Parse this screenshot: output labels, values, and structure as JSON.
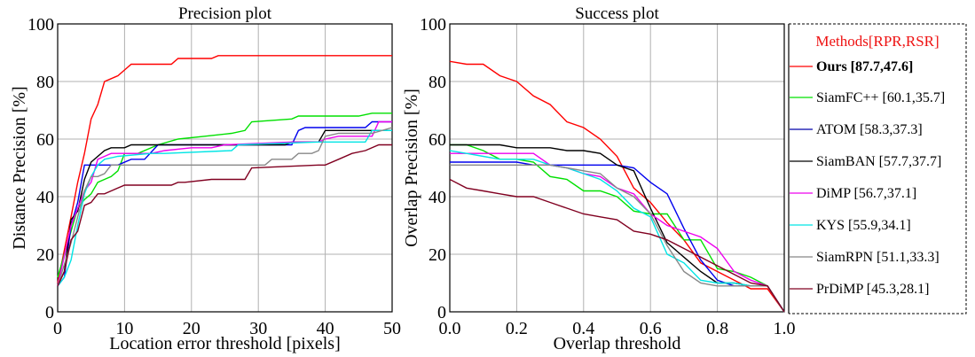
{
  "chart_data": [
    {
      "type": "line",
      "title": "Precision plot",
      "xlabel": "Location error threshold [pixels]",
      "ylabel": "Distance Precision [%]",
      "xlim": [
        0,
        50
      ],
      "ylim": [
        0,
        100
      ],
      "xticks": [
        "0",
        "10",
        "20",
        "30",
        "40",
        "50"
      ],
      "yticks": [
        "0",
        "20",
        "40",
        "60",
        "80",
        "100"
      ],
      "grid": true,
      "series": [
        {
          "name": "Ours",
          "color": "#ff0000",
          "points": [
            [
              0,
              10
            ],
            [
              2,
              33
            ],
            [
              3,
              45
            ],
            [
              4,
              55
            ],
            [
              5,
              67
            ],
            [
              6,
              72
            ],
            [
              7,
              80
            ],
            [
              8,
              81
            ],
            [
              9,
              82
            ],
            [
              10,
              84
            ],
            [
              11,
              86
            ],
            [
              17,
              86
            ],
            [
              18,
              88
            ],
            [
              23,
              88
            ],
            [
              24,
              89
            ],
            [
              50,
              89
            ]
          ]
        },
        {
          "name": "SiamFC++",
          "color": "#00e000",
          "points": [
            [
              0,
              12
            ],
            [
              2,
              28
            ],
            [
              3,
              36
            ],
            [
              4,
              39
            ],
            [
              5,
              41
            ],
            [
              6,
              45
            ],
            [
              7,
              46
            ],
            [
              8,
              47
            ],
            [
              9,
              49
            ],
            [
              10,
              55
            ],
            [
              12,
              55
            ],
            [
              15,
              58
            ],
            [
              18,
              60
            ],
            [
              22,
              61
            ],
            [
              26,
              62
            ],
            [
              28,
              63
            ],
            [
              29,
              66
            ],
            [
              35,
              67
            ],
            [
              36,
              68
            ],
            [
              45,
              68
            ],
            [
              47,
              69
            ],
            [
              50,
              69
            ]
          ]
        },
        {
          "name": "ATOM",
          "color": "#0000ee",
          "points": [
            [
              0,
              9
            ],
            [
              1,
              12
            ],
            [
              2,
              30
            ],
            [
              3,
              38
            ],
            [
              4,
              51
            ],
            [
              9,
              51
            ],
            [
              11,
              53
            ],
            [
              13,
              53
            ],
            [
              15,
              58
            ],
            [
              35,
              58
            ],
            [
              36,
              63
            ],
            [
              37,
              64
            ],
            [
              46,
              64
            ],
            [
              47,
              66
            ],
            [
              50,
              66
            ]
          ]
        },
        {
          "name": "SiamBAN",
          "color": "#000000",
          "points": [
            [
              0,
              9
            ],
            [
              1,
              14
            ],
            [
              2,
              32
            ],
            [
              3,
              35
            ],
            [
              4,
              46
            ],
            [
              5,
              52
            ],
            [
              7,
              56
            ],
            [
              8,
              57
            ],
            [
              10,
              57
            ],
            [
              11,
              58
            ],
            [
              34,
              58
            ],
            [
              35,
              59
            ],
            [
              39,
              59
            ],
            [
              40,
              63
            ],
            [
              50,
              63
            ]
          ]
        },
        {
          "name": "DiMP",
          "color": "#ee00ee",
          "points": [
            [
              0,
              9
            ],
            [
              2,
              30
            ],
            [
              4,
              42
            ],
            [
              5,
              45
            ],
            [
              6,
              53
            ],
            [
              7,
              54
            ],
            [
              8,
              55
            ],
            [
              14,
              55
            ],
            [
              16,
              56
            ],
            [
              20,
              57
            ],
            [
              23,
              57
            ],
            [
              25,
              58
            ],
            [
              35,
              59
            ],
            [
              39,
              59
            ],
            [
              40,
              60
            ],
            [
              42,
              61
            ],
            [
              47,
              61
            ],
            [
              48,
              66
            ],
            [
              50,
              66
            ]
          ]
        },
        {
          "name": "KYS",
          "color": "#00e5e5",
          "points": [
            [
              0,
              9
            ],
            [
              1,
              12
            ],
            [
              2,
              18
            ],
            [
              3,
              30
            ],
            [
              4,
              41
            ],
            [
              5,
              47
            ],
            [
              6,
              51
            ],
            [
              7,
              53
            ],
            [
              9,
              54
            ],
            [
              14,
              55
            ],
            [
              16,
              55
            ],
            [
              26,
              56
            ],
            [
              27,
              58
            ],
            [
              39,
              59
            ],
            [
              46,
              59
            ],
            [
              47,
              63
            ],
            [
              50,
              63
            ]
          ]
        },
        {
          "name": "SiamRPN",
          "color": "#888888",
          "points": [
            [
              0,
              9
            ],
            [
              2,
              24
            ],
            [
              3,
              33
            ],
            [
              4,
              42
            ],
            [
              5,
              47
            ],
            [
              6,
              47
            ],
            [
              7,
              48
            ],
            [
              8,
              51
            ],
            [
              31,
              51
            ],
            [
              32,
              53
            ],
            [
              35,
              53
            ],
            [
              36,
              55
            ],
            [
              38,
              55
            ],
            [
              39,
              56
            ],
            [
              40,
              61
            ],
            [
              42,
              62
            ],
            [
              47,
              62
            ],
            [
              50,
              64
            ]
          ]
        },
        {
          "name": "PrDiMP",
          "color": "#800020",
          "points": [
            [
              0,
              9
            ],
            [
              1,
              14
            ],
            [
              2,
              25
            ],
            [
              3,
              28
            ],
            [
              4,
              37
            ],
            [
              5,
              38
            ],
            [
              6,
              41
            ],
            [
              7,
              41
            ],
            [
              8,
              42
            ],
            [
              10,
              44
            ],
            [
              17,
              44
            ],
            [
              18,
              45
            ],
            [
              19,
              45
            ],
            [
              23,
              46
            ],
            [
              28,
              46
            ],
            [
              29,
              50
            ],
            [
              39,
              51
            ],
            [
              40,
              51
            ],
            [
              42,
              53
            ],
            [
              44,
              55
            ],
            [
              46,
              56
            ],
            [
              48,
              58
            ],
            [
              50,
              58
            ]
          ]
        }
      ]
    },
    {
      "type": "line",
      "title": "Success plot",
      "xlabel": "Overlap threshold",
      "ylabel": "Overlap Precision [%]",
      "xlim": [
        0,
        1
      ],
      "ylim": [
        0,
        100
      ],
      "xticks": [
        "0.0",
        "0.2",
        "0.4",
        "0.6",
        "0.8",
        "1.0"
      ],
      "yticks": [
        "0",
        "20",
        "40",
        "60",
        "80",
        "100"
      ],
      "grid": true,
      "x": [
        0,
        0.05,
        0.1,
        0.15,
        0.2,
        0.25,
        0.3,
        0.35,
        0.4,
        0.45,
        0.5,
        0.55,
        0.6,
        0.65,
        0.7,
        0.75,
        0.8,
        0.85,
        0.9,
        0.95,
        1.0
      ],
      "series": [
        {
          "name": "Ours",
          "color": "#ff0000",
          "values": [
            87,
            86,
            86,
            82,
            80,
            75,
            72,
            66,
            64,
            60,
            54,
            43,
            38,
            31,
            25,
            17,
            14,
            11,
            8,
            8,
            0
          ]
        },
        {
          "name": "SiamFC++",
          "color": "#00e000",
          "values": [
            58,
            58,
            56,
            53,
            53,
            52,
            47,
            46,
            42,
            42,
            40,
            35,
            34,
            34,
            25,
            25,
            15,
            14,
            12,
            9,
            0
          ]
        },
        {
          "name": "ATOM",
          "color": "#0000ee",
          "values": [
            52,
            52,
            52,
            52,
            52,
            51,
            51,
            51,
            51,
            51,
            51,
            50,
            45,
            41,
            29,
            18,
            11,
            9,
            9,
            9,
            0
          ]
        },
        {
          "name": "SiamBAN",
          "color": "#000000",
          "values": [
            58,
            58,
            58,
            58,
            57,
            57,
            57,
            56,
            56,
            55,
            51,
            49,
            36,
            24,
            19,
            14,
            10,
            10,
            9,
            9,
            0
          ]
        },
        {
          "name": "DiMP",
          "color": "#ee00ee",
          "values": [
            55,
            55,
            55,
            55,
            55,
            55,
            51,
            50,
            48,
            47,
            43,
            41,
            34,
            30,
            28,
            26,
            22,
            14,
            11,
            9,
            0
          ]
        },
        {
          "name": "KYS",
          "color": "#00e5e5",
          "values": [
            56,
            55,
            54,
            53,
            53,
            53,
            51,
            50,
            48,
            46,
            42,
            36,
            33,
            20,
            17,
            11,
            10,
            10,
            9,
            9,
            0
          ]
        },
        {
          "name": "SiamRPN",
          "color": "#888888",
          "values": [
            51,
            51,
            51,
            51,
            51,
            51,
            51,
            50,
            49,
            48,
            43,
            40,
            34,
            23,
            14,
            10,
            9,
            9,
            9,
            9,
            0
          ]
        },
        {
          "name": "PrDiMP",
          "color": "#800020",
          "values": [
            46,
            43,
            42,
            41,
            40,
            40,
            38,
            36,
            34,
            33,
            32,
            28,
            27,
            25,
            22,
            19,
            16,
            13,
            10,
            9,
            0
          ]
        }
      ]
    }
  ],
  "legend": {
    "title": "Methods[RPR,RSR]",
    "title_color": "#ee1111",
    "placement": "right",
    "items": [
      {
        "label": "Ours [87.7,47.6]",
        "color": "#ff0000",
        "bold": true
      },
      {
        "label": "SiamFC++ [60.1,35.7]",
        "color": "#00e000"
      },
      {
        "label": "ATOM [58.3,37.3]",
        "color": "#0000aa"
      },
      {
        "label": "SiamBAN [57.7,37.7]",
        "color": "#000000"
      },
      {
        "label": "DiMP [56.7,37.1]",
        "color": "#ee00ee"
      },
      {
        "label": "KYS [55.9,34.1]",
        "color": "#00e5e5"
      },
      {
        "label": "SiamRPN [51.1,33.3]",
        "color": "#888888"
      },
      {
        "label": "PrDiMP [45.3,28.1]",
        "color": "#800020"
      }
    ]
  }
}
